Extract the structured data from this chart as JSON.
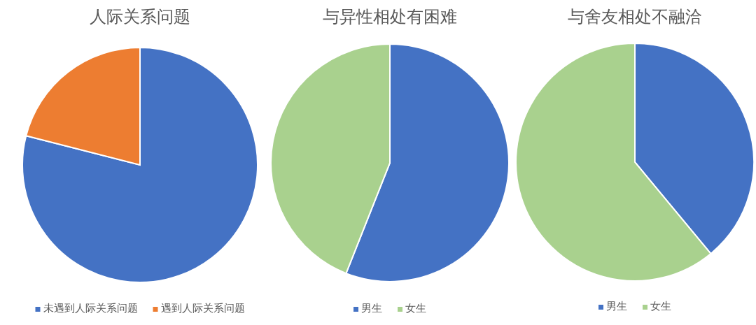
{
  "chart_data": [
    {
      "type": "pie",
      "title": "人际关系问题",
      "categories": [
        "未遇到人际关系问题",
        "遇到人际关系问题"
      ],
      "values": [
        79,
        21
      ],
      "colors": [
        "#4472c4",
        "#ed7d31"
      ],
      "legend": "bottom"
    },
    {
      "type": "pie",
      "title": "与异性相处有困难",
      "categories": [
        "男生",
        "女生"
      ],
      "values": [
        56,
        44
      ],
      "colors": [
        "#4472c4",
        "#a9d18e"
      ],
      "legend": "bottom"
    },
    {
      "type": "pie",
      "title": "与舍友相处不融洽",
      "categories": [
        "男生",
        "女生"
      ],
      "values": [
        39,
        61
      ],
      "colors": [
        "#4472c4",
        "#a9d18e"
      ],
      "legend": "bottom"
    }
  ]
}
